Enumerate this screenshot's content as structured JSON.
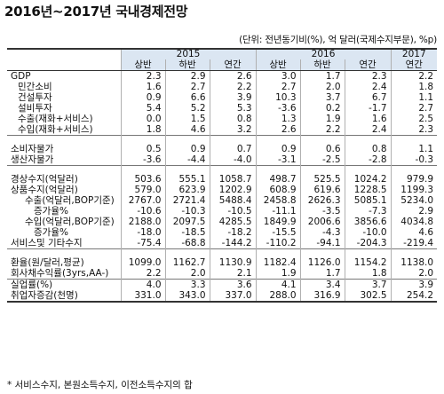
{
  "title": "2016년~2017년 국내경제전망",
  "unit_note": "(단위: 전년동기비(%), 억 달러(국제수지부문), %p)",
  "years": {
    "y2015": "2015",
    "y2016": "2016",
    "y2017": "2017"
  },
  "subheaders": [
    "상반",
    "하반",
    "연간",
    "상반",
    "하반",
    "연간",
    "연간"
  ],
  "rows": [
    {
      "label": "GDP",
      "values": [
        "2.3",
        "2.9",
        "2.6",
        "3.0",
        "1.7",
        "2.3",
        "2.2"
      ]
    },
    {
      "label": "민간소비",
      "values": [
        "1.6",
        "2.7",
        "2.2",
        "2.7",
        "2.0",
        "2.4",
        "1.8"
      ]
    },
    {
      "label": "건설투자",
      "values": [
        "0.9",
        "6.6",
        "3.9",
        "10.3",
        "3.7",
        "6.7",
        "1.1"
      ]
    },
    {
      "label": "설비투자",
      "values": [
        "5.4",
        "5.2",
        "5.3",
        "-3.6",
        "0.2",
        "-1.7",
        "2.7"
      ]
    },
    {
      "label": "수출(재화+서비스)",
      "values": [
        "0.0",
        "1.5",
        "0.8",
        "1.3",
        "1.9",
        "1.6",
        "2.5"
      ]
    },
    {
      "label": "수입(재화+서비스)",
      "values": [
        "1.8",
        "4.6",
        "3.2",
        "2.6",
        "2.2",
        "2.4",
        "2.3"
      ]
    },
    {
      "label": "소비자물가",
      "values": [
        "0.5",
        "0.9",
        "0.7",
        "0.9",
        "0.6",
        "0.8",
        "1.1"
      ]
    },
    {
      "label": "생산자물가",
      "values": [
        "-3.6",
        "-4.4",
        "-4.0",
        "-3.1",
        "-2.5",
        "-2.8",
        "-0.3"
      ]
    },
    {
      "label": "경상수지(억달러)",
      "values": [
        "503.6",
        "555.1",
        "1058.7",
        "498.7",
        "525.5",
        "1024.2",
        "979.9"
      ]
    },
    {
      "label": "상품수지(억달러)",
      "values": [
        "579.0",
        "623.9",
        "1202.9",
        "608.9",
        "619.6",
        "1228.5",
        "1199.3"
      ]
    },
    {
      "label": "수출(억달러,BOP기준)",
      "values": [
        "2767.0",
        "2721.4",
        "5488.4",
        "2458.8",
        "2626.3",
        "5085.1",
        "5234.0"
      ]
    },
    {
      "label": "증가율%",
      "values": [
        "-10.6",
        "-10.3",
        "-10.5",
        "-11.1",
        "-3.5",
        "-7.3",
        "2.9"
      ]
    },
    {
      "label": "수입(억달러,BOP기준)",
      "values": [
        "2188.0",
        "2097.5",
        "4285.5",
        "1849.9",
        "2006.6",
        "3856.6",
        "4034.8"
      ]
    },
    {
      "label": "증가율%",
      "values": [
        "-18.0",
        "-18.5",
        "-18.2",
        "-15.5",
        "-4.3",
        "-10.0",
        "4.6"
      ]
    },
    {
      "label": "서비스및 기타수지",
      "values": [
        "-75.4",
        "-68.8",
        "-144.2",
        "-110.2",
        "-94.1",
        "-204.3",
        "-219.4"
      ]
    },
    {
      "label": "환율(원/달러,평균)",
      "values": [
        "1099.0",
        "1162.7",
        "1130.9",
        "1182.4",
        "1126.0",
        "1154.2",
        "1138.0"
      ]
    },
    {
      "label": "회사채수익률(3yrs,AA-)",
      "values": [
        "2.2",
        "2.0",
        "2.1",
        "1.9",
        "1.7",
        "1.8",
        "2.0"
      ]
    },
    {
      "label": "실업률(%)",
      "values": [
        "4.0",
        "3.3",
        "3.6",
        "4.1",
        "3.4",
        "3.7",
        "3.9"
      ]
    },
    {
      "label": "취업자증감(천명)",
      "values": [
        "331.0",
        "343.0",
        "337.0",
        "288.0",
        "316.9",
        "302.5",
        "254.2"
      ]
    }
  ],
  "footnote": "* 서비스수지, 본원소득수지, 이전소득수지의 합"
}
